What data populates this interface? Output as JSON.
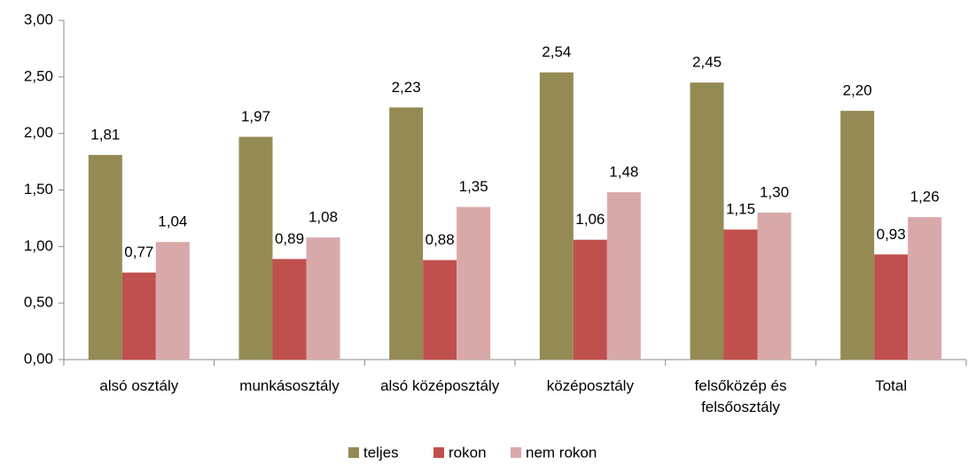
{
  "chart_data": {
    "type": "bar",
    "categories": [
      "alsó osztály",
      "munkásosztály",
      "alsó középosztály",
      "középosztály",
      "felsőközép és felsőosztály",
      "Total"
    ],
    "series": [
      {
        "name": "teljes",
        "color": "#948a54",
        "values": [
          1.81,
          1.97,
          2.23,
          2.54,
          2.45,
          2.2
        ],
        "value_labels": [
          "1,81",
          "1,97",
          "2,23",
          "2,54",
          "2,45",
          "2,20"
        ]
      },
      {
        "name": "rokon",
        "color": "#c0504d",
        "values": [
          0.77,
          0.89,
          0.88,
          1.06,
          1.15,
          0.93
        ],
        "value_labels": [
          "0,77",
          "0,89",
          "0,88",
          "1,06",
          "1,15",
          "0,93"
        ]
      },
      {
        "name": "nem rokon",
        "color": "#d9a9a9",
        "values": [
          1.04,
          1.08,
          1.35,
          1.48,
          1.3,
          1.26
        ],
        "value_labels": [
          "1,04",
          "1,08",
          "1,35",
          "1,48",
          "1,30",
          "1,26"
        ]
      }
    ],
    "ylim": [
      0,
      3
    ],
    "yticks": [
      {
        "value": 0,
        "label": "0,00"
      },
      {
        "value": 0.5,
        "label": "0,50"
      },
      {
        "value": 1,
        "label": "1,00"
      },
      {
        "value": 1.5,
        "label": "1,50"
      },
      {
        "value": 2,
        "label": "2,00"
      },
      {
        "value": 2.5,
        "label": "2,50"
      },
      {
        "value": 3,
        "label": "3,00"
      }
    ],
    "legend": "bottom"
  }
}
